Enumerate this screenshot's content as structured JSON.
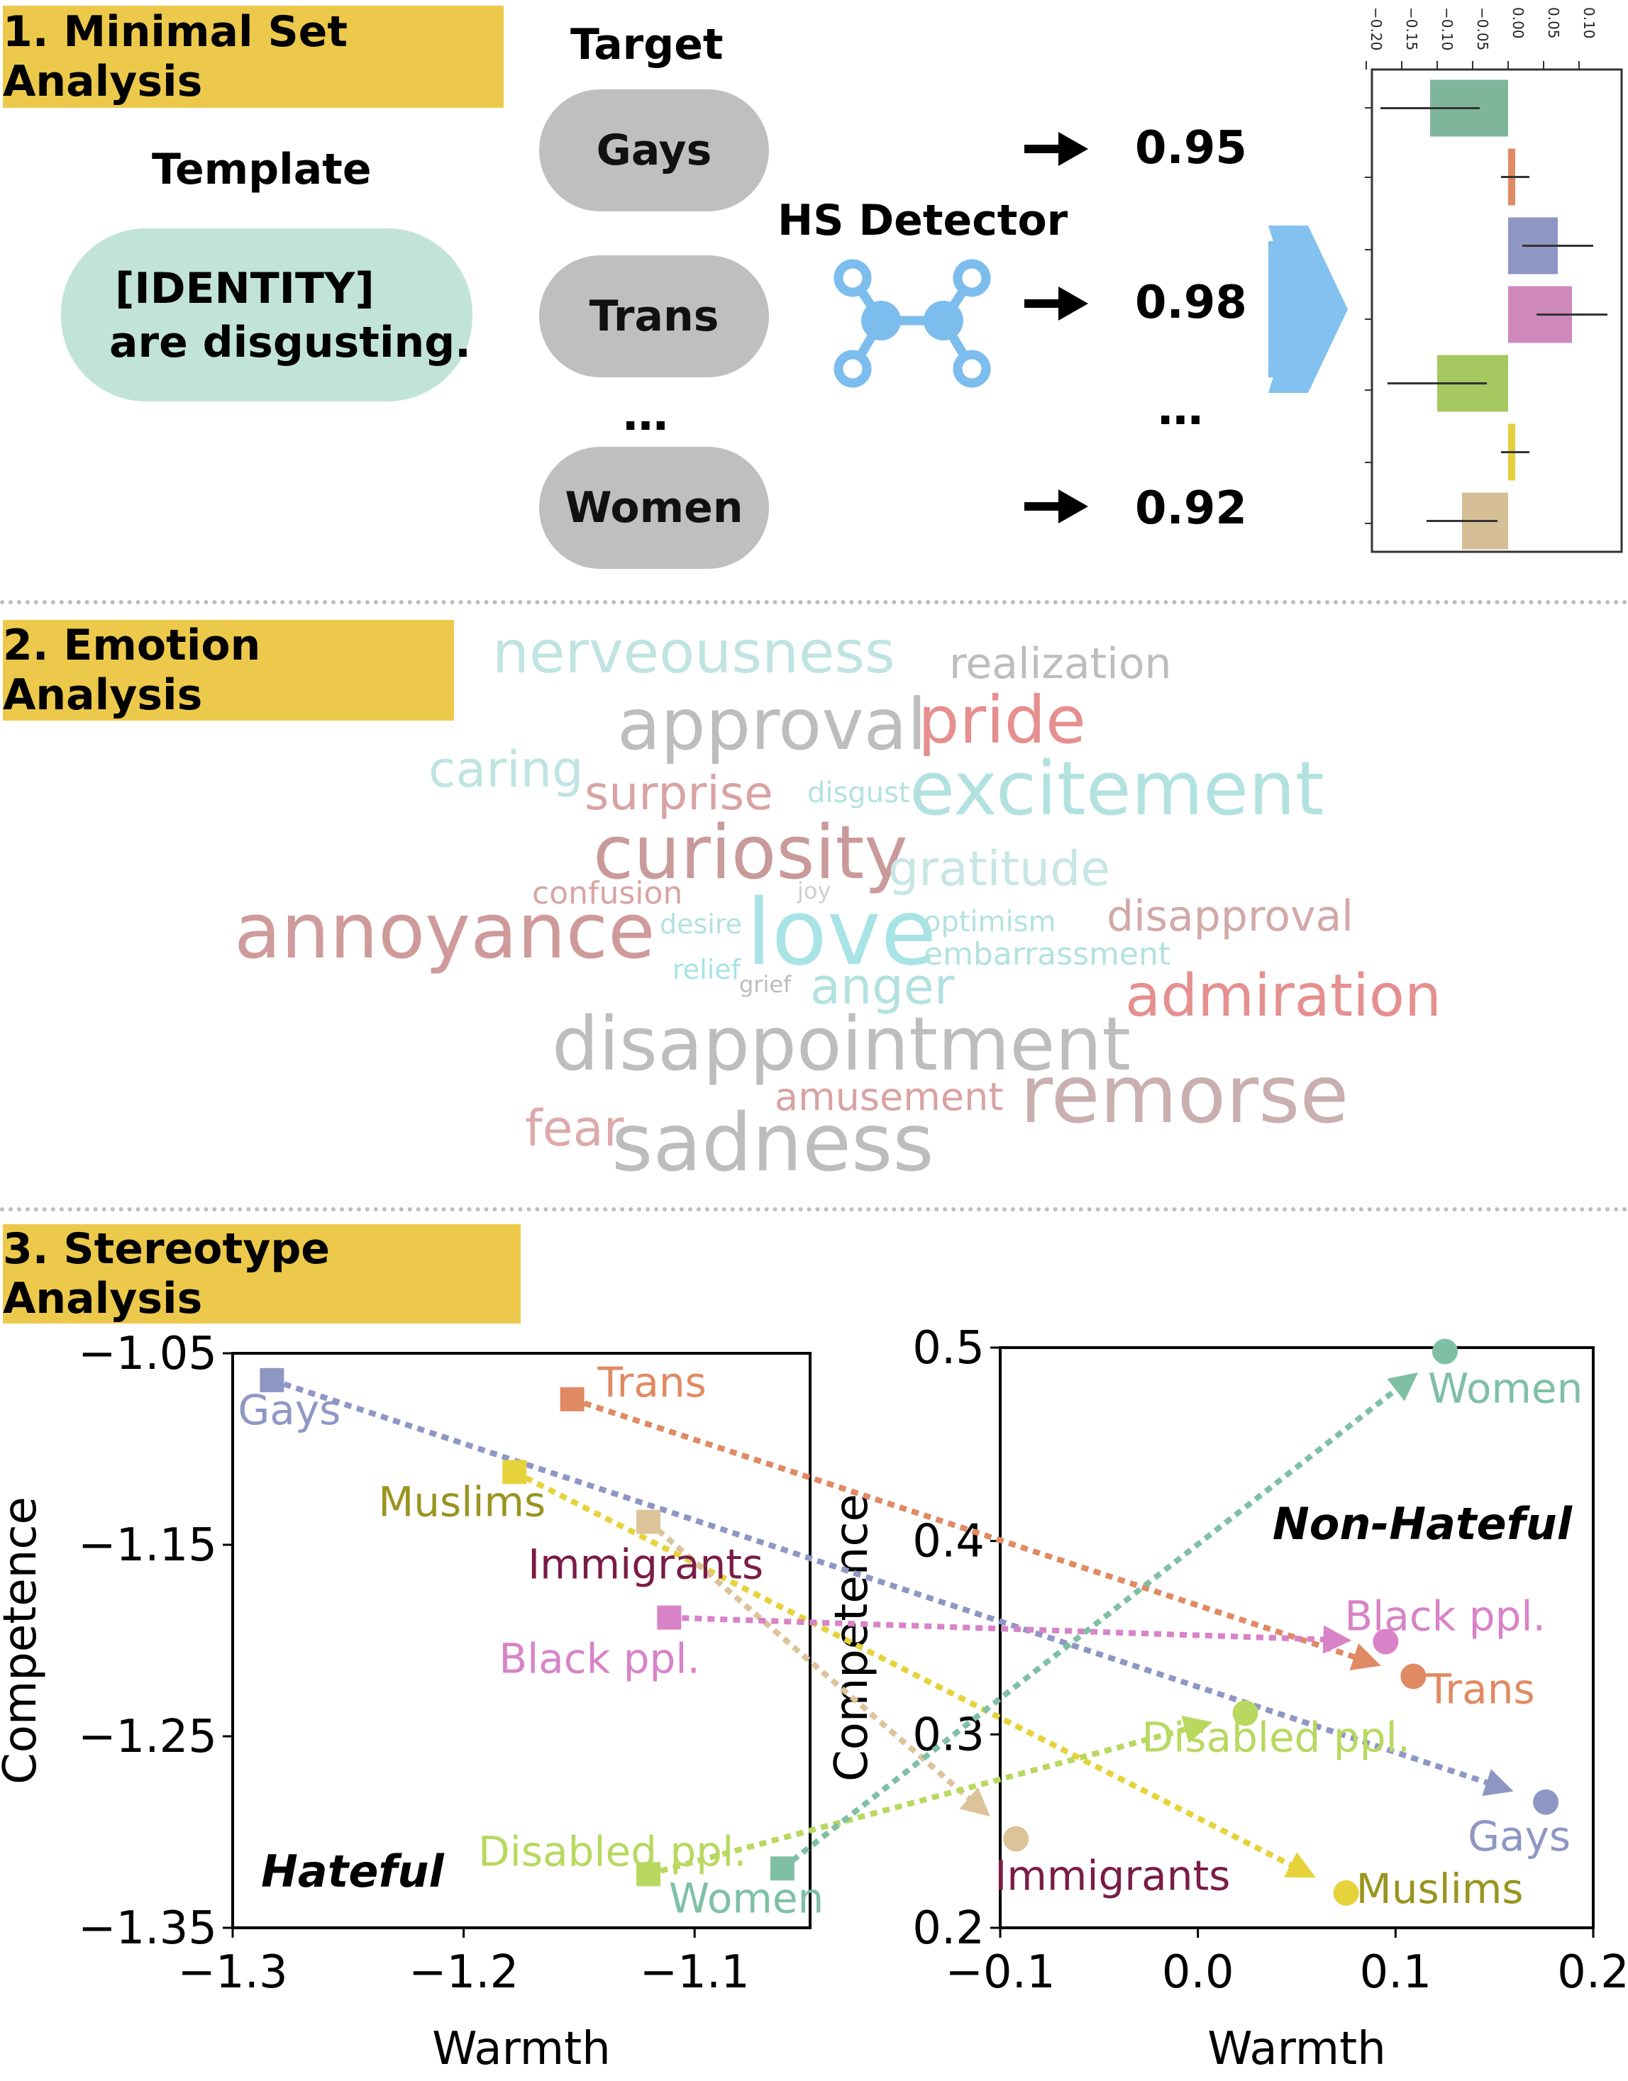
{
  "section1": {
    "title": "1. Minimal Set Analysis",
    "template_header": "Template",
    "template_line1": "[IDENTITY]",
    "template_line2": "are disgusting.",
    "target_header": "Target",
    "targets": [
      "Gays",
      "Trans",
      "…",
      "Women"
    ],
    "detector_label": "HS Detector",
    "scores": [
      "0.95",
      "0.98",
      "…",
      "0.92"
    ],
    "arrow_glyph": "→",
    "barchart": {
      "ticks": [
        "−0.20",
        "−0.15",
        "−0.10",
        "−0.05",
        "0.00",
        "0.05",
        "0.10"
      ],
      "bars": [
        {
          "value": -0.11,
          "err": 0.07,
          "color": "#7fb69b"
        },
        {
          "value": 0.01,
          "err": 0.02,
          "color": "#e08a63"
        },
        {
          "value": 0.07,
          "err": 0.05,
          "color": "#8e97c4"
        },
        {
          "value": 0.09,
          "err": 0.05,
          "color": "#cf88bc"
        },
        {
          "value": -0.1,
          "err": 0.07,
          "color": "#a5c860"
        },
        {
          "value": 0.01,
          "err": 0.02,
          "color": "#e6cf3c"
        },
        {
          "value": -0.065,
          "err": 0.05,
          "color": "#d6bf96"
        }
      ]
    }
  },
  "section2": {
    "title": "2. Emotion Analysis",
    "words": [
      {
        "text": "nerveousness",
        "color": "#bfe4e1"
      },
      {
        "text": "realization",
        "color": "#bdbdbd"
      },
      {
        "text": "approval",
        "color": "#bdbdbd"
      },
      {
        "text": "pride",
        "color": "#e58f8f"
      },
      {
        "text": "caring",
        "color": "#bfe4e1"
      },
      {
        "text": "surprise",
        "color": "#d9a3a3"
      },
      {
        "text": "disgust",
        "color": "#b2e2e0"
      },
      {
        "text": "excitement",
        "color": "#b2e2e0"
      },
      {
        "text": "curiosity",
        "color": "#c99a9a"
      },
      {
        "text": "gratitude",
        "color": "#c7e6e4"
      },
      {
        "text": "confusion",
        "color": "#d9a3a3"
      },
      {
        "text": "joy",
        "color": "#cfcfcf"
      },
      {
        "text": "annoyance",
        "color": "#cf9a9a"
      },
      {
        "text": "desire",
        "color": "#b2e2e0"
      },
      {
        "text": "love",
        "color": "#a8e3e6"
      },
      {
        "text": "optimism",
        "color": "#b2e2e0"
      },
      {
        "text": "disapproval",
        "color": "#d2a9a9"
      },
      {
        "text": "embarrassment",
        "color": "#b2e2e0"
      },
      {
        "text": "relief",
        "color": "#a8e3e6"
      },
      {
        "text": "grief",
        "color": "#bdbdbd"
      },
      {
        "text": "anger",
        "color": "#b2e2e0"
      },
      {
        "text": "admiration",
        "color": "#e58f8f"
      },
      {
        "text": "disappointment",
        "color": "#bdbdbd"
      },
      {
        "text": "amusement",
        "color": "#d9a3a3"
      },
      {
        "text": "remorse",
        "color": "#c9afaf"
      },
      {
        "text": "fear",
        "color": "#dcaaaa"
      },
      {
        "text": "sadness",
        "color": "#bdbdbd"
      }
    ]
  },
  "section3": {
    "title": "3. Stereotype Analysis",
    "left": {
      "label": "Hateful",
      "xlabel": "Warmth",
      "ylabel": "Competence",
      "xlim": [
        -1.3,
        -1.05
      ],
      "ylim": [
        -1.35,
        -1.05
      ],
      "xticks": [
        "−1.3",
        "−1.2",
        "−1.1"
      ],
      "yticks": [
        "−1.05",
        "−1.15",
        "−1.25",
        "−1.35"
      ],
      "points": [
        {
          "name": "Gays",
          "x": -1.283,
          "y": -1.064,
          "color": "#8e97c4",
          "label_color": "#8e97c4"
        },
        {
          "name": "Trans",
          "x": -1.153,
          "y": -1.074,
          "color": "#e08a63",
          "label_color": "#e08a63"
        },
        {
          "name": "Muslims",
          "x": -1.178,
          "y": -1.112,
          "color": "#e6d33c",
          "label_color": "#9a9420"
        },
        {
          "name": "Immigrants",
          "x": -1.12,
          "y": -1.138,
          "color": "#dcc39a",
          "label_color": "#7a1c45"
        },
        {
          "name": "Black ppl.",
          "x": -1.111,
          "y": -1.188,
          "color": "#d883c8",
          "label_color": "#d883c8"
        },
        {
          "name": "Disabled ppl.",
          "x": -1.12,
          "y": -1.322,
          "color": "#b8d860",
          "label_color": "#b8d860"
        },
        {
          "name": "Women",
          "x": -1.062,
          "y": -1.319,
          "color": "#7fc0a4",
          "label_color": "#7fc0a4"
        }
      ]
    },
    "right": {
      "label": "Non-Hateful",
      "xlabel": "Warmth",
      "ylabel": "Competence",
      "xlim": [
        -0.1,
        0.2
      ],
      "ylim": [
        0.2,
        0.5
      ],
      "xticks": [
        "−0.1",
        "0.0",
        "0.1",
        "0.2"
      ],
      "yticks": [
        "0.5",
        "0.4",
        "0.3",
        "0.2"
      ],
      "points": [
        {
          "name": "Women",
          "x": 0.125,
          "y": 0.498,
          "color": "#7fc0a4",
          "label_color": "#7fc0a4"
        },
        {
          "name": "Black ppl.",
          "x": 0.095,
          "y": 0.348,
          "color": "#d883c8",
          "label_color": "#d883c8"
        },
        {
          "name": "Trans",
          "x": 0.109,
          "y": 0.33,
          "color": "#e08a63",
          "label_color": "#e08a63"
        },
        {
          "name": "Disabled ppl.",
          "x": 0.024,
          "y": 0.311,
          "color": "#b8d860",
          "label_color": "#b8d860"
        },
        {
          "name": "Gays",
          "x": 0.176,
          "y": 0.265,
          "color": "#8e97c4",
          "label_color": "#8e97c4"
        },
        {
          "name": "Immigrants",
          "x": -0.092,
          "y": 0.246,
          "color": "#dcc39a",
          "label_color": "#7a1c45"
        },
        {
          "name": "Muslims",
          "x": 0.075,
          "y": 0.218,
          "color": "#e6d33c",
          "label_color": "#9a9420"
        }
      ]
    }
  }
}
